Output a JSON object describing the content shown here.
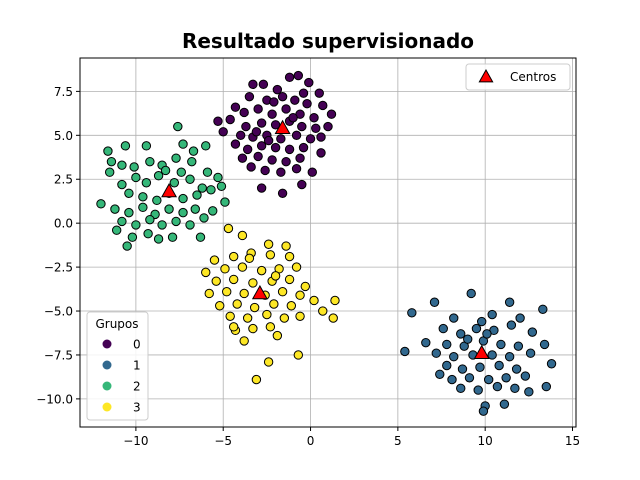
{
  "chart_data": {
    "type": "scatter",
    "title": "Resultado supervisionado",
    "xlabel": "",
    "ylabel": "",
    "xlim": [
      -13.2,
      15.2
    ],
    "ylim": [
      -11.6,
      9.4
    ],
    "xticks": [
      -10,
      -5,
      0,
      5,
      10,
      15
    ],
    "yticks": [
      -10.0,
      -7.5,
      -5.0,
      -2.5,
      0.0,
      2.5,
      5.0,
      7.5
    ],
    "xtick_labels": [
      "−10",
      "−5",
      "0",
      "5",
      "10",
      "15"
    ],
    "ytick_labels": [
      "−10.0",
      "−7.5",
      "−5.0",
      "−2.5",
      "0.0",
      "2.5",
      "5.0",
      "7.5"
    ],
    "grid": true,
    "legend_groups": {
      "title": "Grupos",
      "placement": "lower-left",
      "entries": [
        {
          "label": "0",
          "color": "#440154"
        },
        {
          "label": "1",
          "color": "#31688e"
        },
        {
          "label": "2",
          "color": "#35b779"
        },
        {
          "label": "3",
          "color": "#fde725"
        }
      ]
    },
    "legend_centers": {
      "placement": "upper-right",
      "label": "Centros",
      "color": "#ff0000"
    },
    "centers": [
      {
        "group": "0",
        "x": -1.6,
        "y": 5.4
      },
      {
        "group": "1",
        "x": 9.8,
        "y": -7.4
      },
      {
        "group": "2",
        "x": -8.1,
        "y": 1.8
      },
      {
        "group": "3",
        "x": -2.9,
        "y": -4.0
      }
    ],
    "series": [
      {
        "group": "0",
        "color": "#440154",
        "points": [
          [
            -3.3,
            7.9
          ],
          [
            -2.7,
            7.9
          ],
          [
            -1.9,
            7.6
          ],
          [
            -1.2,
            8.3
          ],
          [
            -0.7,
            8.4
          ],
          [
            -0.1,
            8.0
          ],
          [
            0.5,
            7.4
          ],
          [
            -3.5,
            7.2
          ],
          [
            -2.5,
            7.0
          ],
          [
            -1.6,
            7.2
          ],
          [
            -0.9,
            7.0
          ],
          [
            -0.2,
            6.8
          ],
          [
            0.7,
            6.7
          ],
          [
            1.2,
            6.2
          ],
          [
            -4.3,
            6.6
          ],
          [
            -3.8,
            6.3
          ],
          [
            -3.0,
            6.5
          ],
          [
            -2.2,
            6.2
          ],
          [
            -1.4,
            6.5
          ],
          [
            -0.6,
            6.2
          ],
          [
            0.2,
            6.0
          ],
          [
            -4.6,
            5.9
          ],
          [
            -3.7,
            5.5
          ],
          [
            -2.8,
            5.7
          ],
          [
            -2.0,
            5.6
          ],
          [
            -1.2,
            5.8
          ],
          [
            -0.5,
            5.5
          ],
          [
            0.3,
            5.4
          ],
          [
            1.0,
            5.5
          ],
          [
            -5.3,
            5.8
          ],
          [
            -5.0,
            5.2
          ],
          [
            -4.0,
            5.0
          ],
          [
            -3.3,
            4.9
          ],
          [
            -2.5,
            5.0
          ],
          [
            -1.7,
            4.8
          ],
          [
            -0.8,
            5.0
          ],
          [
            0.0,
            4.8
          ],
          [
            0.6,
            4.9
          ],
          [
            -4.3,
            4.5
          ],
          [
            -3.6,
            4.2
          ],
          [
            -2.8,
            4.4
          ],
          [
            -2.0,
            4.3
          ],
          [
            -1.2,
            4.2
          ],
          [
            -0.4,
            4.3
          ],
          [
            0.6,
            4.0
          ],
          [
            -3.9,
            3.7
          ],
          [
            -3.0,
            3.8
          ],
          [
            -2.2,
            3.6
          ],
          [
            -1.4,
            3.5
          ],
          [
            -0.6,
            3.7
          ],
          [
            -3.4,
            3.2
          ],
          [
            -2.6,
            3.0
          ],
          [
            -1.7,
            2.9
          ],
          [
            -0.8,
            3.1
          ],
          [
            0.1,
            2.9
          ],
          [
            -2.8,
            2.0
          ],
          [
            -1.6,
            1.7
          ],
          [
            -0.5,
            2.2
          ],
          [
            -2.1,
            6.9
          ],
          [
            -0.4,
            7.4
          ],
          [
            -3.1,
            5.2
          ],
          [
            -1.0,
            6.0
          ],
          [
            -2.4,
            4.7
          ]
        ]
      },
      {
        "group": "1",
        "color": "#31688e",
        "points": [
          [
            9.2,
            -4.0
          ],
          [
            9.8,
            -5.6
          ],
          [
            11.4,
            -4.5
          ],
          [
            13.3,
            -4.9
          ],
          [
            5.8,
            -5.1
          ],
          [
            7.1,
            -4.5
          ],
          [
            8.2,
            -5.4
          ],
          [
            10.4,
            -5.2
          ],
          [
            12.0,
            -5.4
          ],
          [
            7.6,
            -6.0
          ],
          [
            8.6,
            -6.3
          ],
          [
            9.5,
            -6.0
          ],
          [
            10.5,
            -6.1
          ],
          [
            11.5,
            -5.8
          ],
          [
            12.7,
            -6.2
          ],
          [
            6.6,
            -6.8
          ],
          [
            7.8,
            -6.9
          ],
          [
            8.8,
            -7.0
          ],
          [
            9.9,
            -6.7
          ],
          [
            10.9,
            -6.9
          ],
          [
            11.9,
            -7.0
          ],
          [
            13.4,
            -6.9
          ],
          [
            5.4,
            -7.3
          ],
          [
            7.2,
            -7.4
          ],
          [
            8.2,
            -7.6
          ],
          [
            9.3,
            -7.5
          ],
          [
            10.4,
            -7.5
          ],
          [
            11.4,
            -7.6
          ],
          [
            12.6,
            -7.4
          ],
          [
            7.8,
            -8.1
          ],
          [
            8.7,
            -8.3
          ],
          [
            9.7,
            -8.2
          ],
          [
            10.8,
            -8.1
          ],
          [
            11.8,
            -8.3
          ],
          [
            13.8,
            -8.0
          ],
          [
            8.1,
            -8.9
          ],
          [
            9.1,
            -8.8
          ],
          [
            10.2,
            -8.9
          ],
          [
            11.2,
            -8.8
          ],
          [
            12.3,
            -8.7
          ],
          [
            8.6,
            -9.4
          ],
          [
            9.6,
            -9.5
          ],
          [
            10.7,
            -9.3
          ],
          [
            11.7,
            -9.4
          ],
          [
            13.5,
            -9.3
          ],
          [
            10.0,
            -10.4
          ],
          [
            11.1,
            -10.3
          ],
          [
            9.9,
            -10.7
          ],
          [
            12.5,
            -9.6
          ],
          [
            7.4,
            -8.6
          ],
          [
            10.1,
            -6.3
          ],
          [
            9.0,
            -6.6
          ]
        ]
      },
      {
        "group": "2",
        "color": "#35b779",
        "points": [
          [
            -10.6,
            4.4
          ],
          [
            -9.4,
            4.4
          ],
          [
            -7.6,
            5.5
          ],
          [
            -7.3,
            4.5
          ],
          [
            -11.6,
            4.1
          ],
          [
            -11.4,
            3.5
          ],
          [
            -10.8,
            3.3
          ],
          [
            -10.1,
            3.2
          ],
          [
            -9.2,
            3.5
          ],
          [
            -8.5,
            3.3
          ],
          [
            -7.7,
            3.7
          ],
          [
            -6.8,
            3.5
          ],
          [
            -6.0,
            4.4
          ],
          [
            -5.9,
            2.9
          ],
          [
            -11.5,
            2.9
          ],
          [
            -10.8,
            2.2
          ],
          [
            -10.0,
            2.6
          ],
          [
            -9.4,
            2.3
          ],
          [
            -8.7,
            2.7
          ],
          [
            -7.8,
            2.3
          ],
          [
            -6.9,
            2.5
          ],
          [
            -6.2,
            2.0
          ],
          [
            -5.3,
            2.6
          ],
          [
            -10.4,
            1.7
          ],
          [
            -9.6,
            1.5
          ],
          [
            -8.8,
            1.3
          ],
          [
            -8.1,
            1.7
          ],
          [
            -7.3,
            1.4
          ],
          [
            -6.5,
            1.6
          ],
          [
            -5.7,
            1.9
          ],
          [
            -12.0,
            1.1
          ],
          [
            -11.2,
            0.8
          ],
          [
            -10.4,
            0.6
          ],
          [
            -9.6,
            0.9
          ],
          [
            -8.9,
            0.5
          ],
          [
            -8.1,
            0.8
          ],
          [
            -7.3,
            0.6
          ],
          [
            -6.6,
            0.8
          ],
          [
            -5.6,
            0.7
          ],
          [
            -10.8,
            0.1
          ],
          [
            -10.0,
            -0.1
          ],
          [
            -9.2,
            0.2
          ],
          [
            -8.5,
            -0.1
          ],
          [
            -7.7,
            0.1
          ],
          [
            -6.9,
            -0.1
          ],
          [
            -6.1,
            0.3
          ],
          [
            -11.1,
            -0.4
          ],
          [
            -10.2,
            -0.8
          ],
          [
            -8.7,
            -0.9
          ],
          [
            -7.9,
            -0.8
          ],
          [
            -6.3,
            -0.8
          ],
          [
            -10.5,
            -1.3
          ],
          [
            -9.3,
            -0.6
          ],
          [
            -4.9,
            1.2
          ],
          [
            -5.1,
            2.1
          ],
          [
            -7.4,
            2.9
          ],
          [
            -8.3,
            3.0
          ],
          [
            -6.7,
            4.1
          ]
        ]
      },
      {
        "group": "3",
        "color": "#fde725",
        "points": [
          [
            -4.7,
            -0.3
          ],
          [
            -3.9,
            -0.7
          ],
          [
            -2.4,
            -1.2
          ],
          [
            -1.4,
            -1.3
          ],
          [
            -5.5,
            -2.1
          ],
          [
            -4.4,
            -1.9
          ],
          [
            -3.4,
            -1.7
          ],
          [
            -2.3,
            -1.8
          ],
          [
            -1.2,
            -1.9
          ],
          [
            -6.0,
            -2.8
          ],
          [
            -4.9,
            -2.6
          ],
          [
            -3.9,
            -2.5
          ],
          [
            -2.8,
            -2.7
          ],
          [
            -1.8,
            -2.6
          ],
          [
            -0.8,
            -2.5
          ],
          [
            -5.4,
            -3.3
          ],
          [
            -4.4,
            -3.2
          ],
          [
            -3.3,
            -3.4
          ],
          [
            -2.2,
            -3.3
          ],
          [
            -1.2,
            -3.2
          ],
          [
            -0.3,
            -3.6
          ],
          [
            -5.8,
            -4.0
          ],
          [
            -4.8,
            -3.9
          ],
          [
            -3.8,
            -4.0
          ],
          [
            -2.6,
            -4.1
          ],
          [
            -1.6,
            -3.9
          ],
          [
            -0.6,
            -4.1
          ],
          [
            0.2,
            -4.4
          ],
          [
            1.4,
            -4.4
          ],
          [
            -5.2,
            -4.7
          ],
          [
            -4.2,
            -4.6
          ],
          [
            -3.2,
            -4.8
          ],
          [
            -2.1,
            -4.6
          ],
          [
            -1.1,
            -4.7
          ],
          [
            0.7,
            -5.0
          ],
          [
            -4.6,
            -5.3
          ],
          [
            -3.6,
            -5.4
          ],
          [
            -2.5,
            -5.2
          ],
          [
            -1.5,
            -5.4
          ],
          [
            -0.6,
            -5.3
          ],
          [
            -4.3,
            -6.1
          ],
          [
            -3.3,
            -6.0
          ],
          [
            -2.3,
            -5.9
          ],
          [
            1.3,
            -5.4
          ],
          [
            -3.8,
            -6.7
          ],
          [
            -2.4,
            -7.9
          ],
          [
            -0.7,
            -7.5
          ],
          [
            -3.1,
            -8.9
          ],
          [
            -4.4,
            -5.9
          ],
          [
            -1.9,
            -6.4
          ],
          [
            -3.5,
            -2.0
          ],
          [
            -2.0,
            -3.0
          ]
        ]
      }
    ]
  }
}
